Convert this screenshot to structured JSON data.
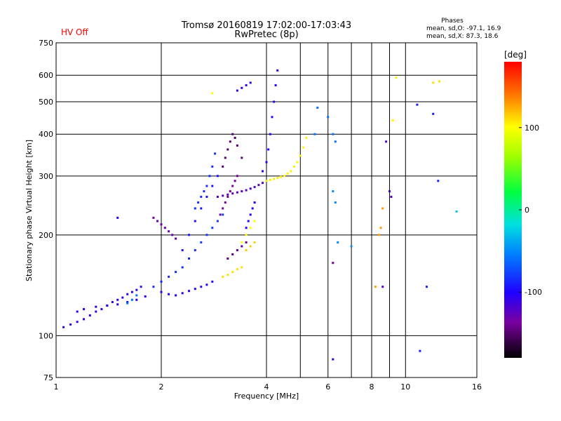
{
  "header": {
    "status": "HV Off",
    "status_color": "#ff0000",
    "title_line1": "Tromsø 20160819 17:02:00-17:03:43",
    "title_line2": "RwPretec (8p)",
    "stats_heading": "Phases",
    "stats_o": "mean, sd,O: -97.1, 16.9",
    "stats_x": "mean, sd,X:  87.3, 18.6"
  },
  "chart_data": {
    "type": "scatter",
    "xlabel": "Frequency [MHz]",
    "ylabel": "Stationary phase Virtual Height [km]",
    "x_scale": "log",
    "y_scale": "log",
    "xlim": [
      1,
      16
    ],
    "ylim": [
      75,
      750
    ],
    "x_ticks": [
      1,
      2,
      4,
      6,
      8,
      10,
      16
    ],
    "x_minor_ticks": [
      5,
      7,
      9
    ],
    "y_ticks": [
      75,
      100,
      200,
      300,
      400,
      500,
      600,
      750
    ],
    "grid": true,
    "colorbar": {
      "label": "[deg]",
      "range": [
        -180,
        180
      ],
      "ticks": [
        100,
        0,
        -100
      ],
      "colormap": "rainbow"
    },
    "point_groups": [
      {
        "x": [
          1.05,
          1.1,
          1.15,
          1.2,
          1.25,
          1.3,
          1.35,
          1.4,
          1.45,
          1.5,
          1.55,
          1.6,
          1.65,
          1.7,
          1.75
        ],
        "y": [
          106,
          108,
          110,
          112,
          115,
          118,
          120,
          123,
          126,
          128,
          130,
          133,
          135,
          137,
          140
        ],
        "phase": -110
      },
      {
        "x": [
          1.15,
          1.2,
          1.3,
          1.4,
          1.5,
          1.6,
          1.7,
          1.8
        ],
        "y": [
          118,
          120,
          122,
          123,
          124,
          126,
          128,
          131
        ],
        "phase": -105
      },
      {
        "x": [
          1.6,
          1.65,
          1.7
        ],
        "y": [
          125,
          128,
          132
        ],
        "phase": -60
      },
      {
        "x": [
          1.5
        ],
        "y": [
          225
        ],
        "phase": -100
      },
      {
        "x": [
          1.9,
          1.95,
          2.0,
          2.05,
          2.1,
          2.15,
          2.2
        ],
        "y": [
          225,
          220,
          215,
          210,
          205,
          200,
          195
        ],
        "phase": -130
      },
      {
        "x": [
          1.9,
          2.0,
          2.1,
          2.2,
          2.3,
          2.4,
          2.5
        ],
        "y": [
          140,
          145,
          150,
          155,
          160,
          170,
          180
        ],
        "phase": -85
      },
      {
        "x": [
          2.0,
          2.1,
          2.2,
          2.3,
          2.4,
          2.5,
          2.6,
          2.7,
          2.8
        ],
        "y": [
          135,
          133,
          132,
          134,
          136,
          138,
          140,
          142,
          145
        ],
        "phase": -100
      },
      {
        "x": [
          2.3,
          2.4,
          2.5,
          2.6,
          2.7,
          2.8,
          2.9
        ],
        "y": [
          180,
          200,
          220,
          240,
          260,
          280,
          300
        ],
        "phase": -95
      },
      {
        "x": [
          2.5,
          2.55,
          2.6,
          2.65,
          2.7,
          2.75,
          2.8,
          2.85
        ],
        "y": [
          240,
          250,
          260,
          270,
          280,
          300,
          320,
          350
        ],
        "phase": -85
      },
      {
        "x": [
          2.6,
          2.7,
          2.8,
          2.9,
          3.0
        ],
        "y": [
          190,
          200,
          210,
          220,
          230
        ],
        "phase": -80
      },
      {
        "x": [
          2.9,
          3.0,
          3.1,
          3.2,
          3.3,
          3.4,
          3.5,
          3.6,
          3.7,
          3.8,
          3.9,
          4.0
        ],
        "y": [
          260,
          262,
          264,
          266,
          268,
          270,
          272,
          275,
          278,
          282,
          286,
          290
        ],
        "phase": -125
      },
      {
        "x": [
          2.95,
          3.0,
          3.05,
          3.1,
          3.15,
          3.2,
          3.25,
          3.3
        ],
        "y": [
          230,
          240,
          250,
          260,
          270,
          280,
          290,
          300
        ],
        "phase": -140
      },
      {
        "x": [
          3.0,
          3.05,
          3.1,
          3.15,
          3.2,
          3.25,
          3.3,
          3.4
        ],
        "y": [
          320,
          340,
          360,
          380,
          400,
          390,
          370,
          340
        ],
        "phase": -150
      },
      {
        "x": [
          3.1,
          3.2,
          3.3,
          3.4,
          3.5
        ],
        "y": [
          170,
          175,
          180,
          185,
          190
        ],
        "phase": -145
      },
      {
        "x": [
          3.3,
          3.4,
          3.5,
          3.6
        ],
        "y": [
          540,
          550,
          560,
          570
        ],
        "phase": -110
      },
      {
        "x": [
          3.5,
          3.55,
          3.6,
          3.65,
          3.7
        ],
        "y": [
          210,
          220,
          230,
          240,
          250
        ],
        "phase": -100
      },
      {
        "x": [
          3.9,
          4.0,
          4.05,
          4.1,
          4.15,
          4.2,
          4.25,
          4.3
        ],
        "y": [
          310,
          330,
          360,
          400,
          450,
          500,
          560,
          620
        ],
        "phase": -105
      },
      {
        "x": [
          4.0,
          4.1,
          4.2,
          4.3,
          4.4,
          4.5,
          4.6,
          4.7,
          4.8,
          4.9,
          5.0,
          5.1,
          5.2
        ],
        "y": [
          290,
          292,
          294,
          296,
          298,
          300,
          305,
          310,
          320,
          330,
          345,
          365,
          390
        ],
        "phase": 105
      },
      {
        "x": [
          3.0,
          3.1,
          3.2,
          3.3,
          3.4
        ],
        "y": [
          150,
          152,
          155,
          158,
          160
        ],
        "phase": 110
      },
      {
        "x": [
          3.4,
          3.5,
          3.6,
          3.7
        ],
        "y": [
          190,
          200,
          210,
          220
        ],
        "phase": 100
      },
      {
        "x": [
          3.5,
          3.6,
          3.7
        ],
        "y": [
          180,
          185,
          190
        ],
        "phase": 115
      },
      {
        "x": [
          2.8
        ],
        "y": [
          530
        ],
        "phase": 100
      },
      {
        "x": [
          5.5,
          5.6,
          6.0,
          6.2,
          6.3
        ],
        "y": [
          400,
          480,
          450,
          400,
          380
        ],
        "phase": -60
      },
      {
        "x": [
          6.2,
          6.3,
          6.4,
          7.0
        ],
        "y": [
          270,
          250,
          190,
          185
        ],
        "phase": -50
      },
      {
        "x": [
          6.2
        ],
        "y": [
          165
        ],
        "phase": -140
      },
      {
        "x": [
          6.2
        ],
        "y": [
          85
        ],
        "phase": -110
      },
      {
        "x": [
          8.2,
          8.4,
          8.5,
          8.6
        ],
        "y": [
          140,
          200,
          210,
          240
        ],
        "phase": 130
      },
      {
        "x": [
          8.6,
          8.8,
          9.0,
          9.1
        ],
        "y": [
          140,
          380,
          270,
          260
        ],
        "phase": -120
      },
      {
        "x": [
          9.2,
          9.4
        ],
        "y": [
          440,
          590
        ],
        "phase": 105
      },
      {
        "x": [
          10.8,
          11.0,
          11.5,
          12.0,
          12.4
        ],
        "y": [
          490,
          90,
          140,
          460,
          290
        ],
        "phase": -90
      },
      {
        "x": [
          12.0,
          12.5
        ],
        "y": [
          570,
          575
        ],
        "phase": 110
      },
      {
        "x": [
          14.0
        ],
        "y": [
          235
        ],
        "phase": -30
      }
    ]
  }
}
